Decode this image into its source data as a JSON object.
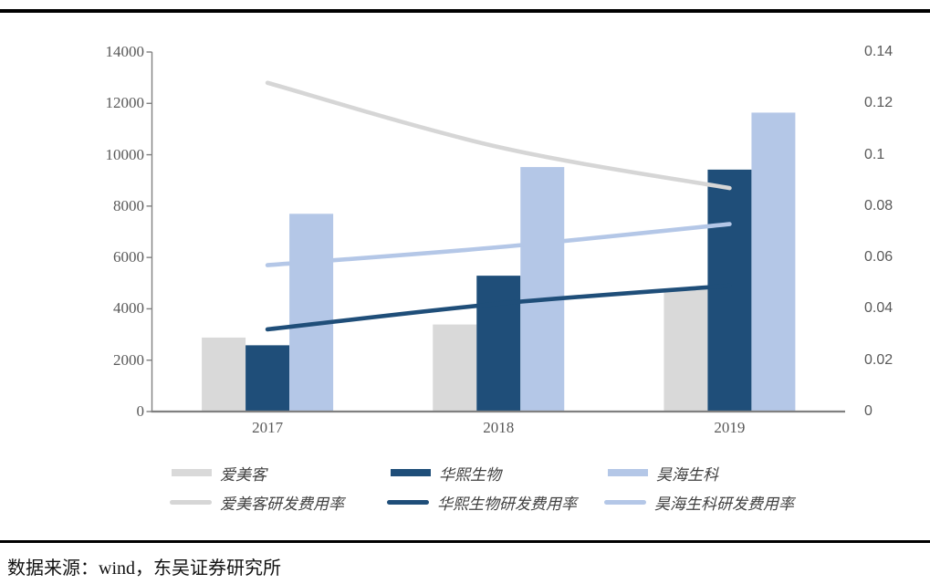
{
  "chart_data": {
    "type": "bar+line",
    "categories": [
      "2017",
      "2018",
      "2019"
    ],
    "bar_series": [
      {
        "name": "爱美客",
        "color": "#D9D9D9",
        "values": [
          2880,
          3390,
          4770
        ]
      },
      {
        "name": "华熙生物",
        "color": "#1F4E79",
        "values": [
          2580,
          5290,
          9420
        ]
      },
      {
        "name": "昊海生科",
        "color": "#B4C7E7",
        "values": [
          7700,
          9520,
          11640
        ]
      }
    ],
    "line_series": [
      {
        "name": "爱美客研发费用率",
        "color": "#D6D6D6",
        "values": [
          0.128,
          0.103,
          0.087
        ]
      },
      {
        "name": "华熙生物研发费用率",
        "color": "#1F4E79",
        "values": [
          0.032,
          0.042,
          0.049
        ]
      },
      {
        "name": "昊海生科研发费用率",
        "color": "#B4C7E7",
        "values": [
          0.057,
          0.064,
          0.073
        ]
      }
    ],
    "left_axis": {
      "min": 0,
      "max": 14000,
      "tick_labels": [
        "0",
        "2000",
        "4000",
        "6000",
        "8000",
        "10000",
        "12000",
        "14000"
      ]
    },
    "right_axis": {
      "min": 0,
      "max": 0.14,
      "tick_labels": [
        "0",
        "0.02",
        "0.04",
        "0.06",
        "0.08",
        "0.1",
        "0.12",
        "0.14"
      ]
    },
    "legend_position": "bottom",
    "grid": false
  },
  "source": {
    "text": "数据来源：wind，东吴证券研究所"
  }
}
